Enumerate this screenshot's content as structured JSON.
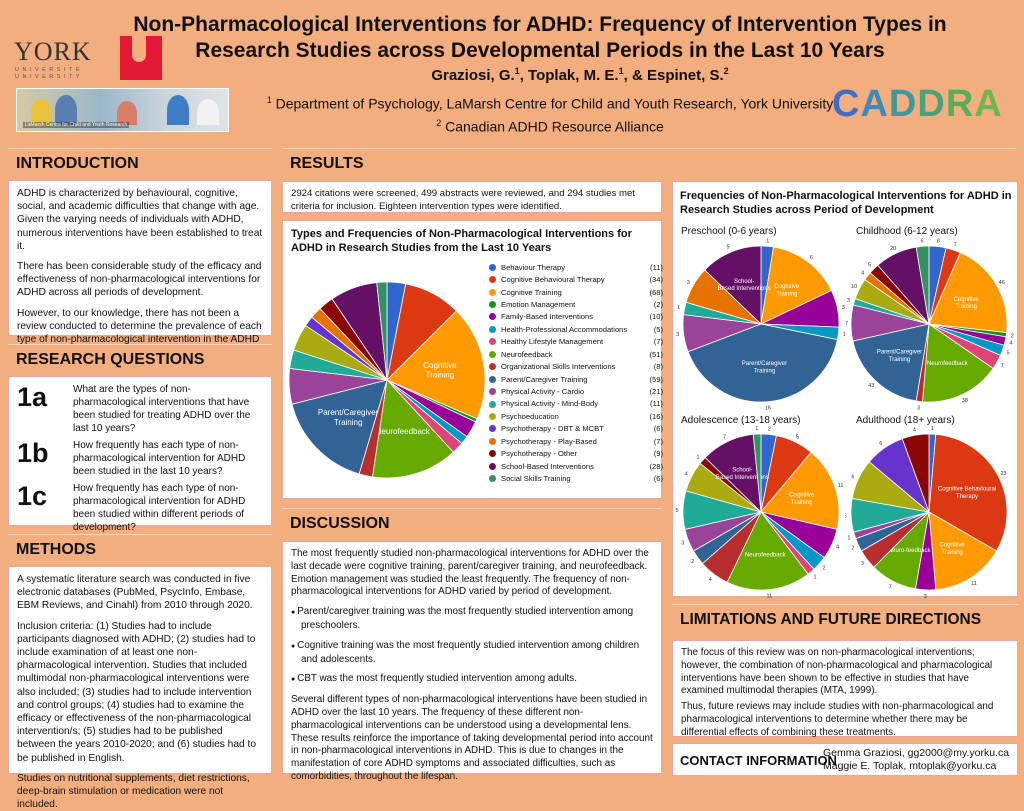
{
  "header": {
    "title_line1": "Non-Pharmacological Interventions for ADHD: Frequency of Intervention Types in",
    "title_line2": "Research Studies across Developmental Periods in the Last 10 Years",
    "authors": [
      {
        "name": "Graziosi, G.",
        "sup": "1"
      },
      {
        "name": "Toplak, M. E.",
        "sup": "1"
      },
      {
        "name": "Espinet, S.",
        "sup": "2"
      }
    ],
    "affiliations": [
      {
        "sup": "1",
        "text": "Department of Psychology, LaMarsh Centre for Child and Youth Research, York University"
      },
      {
        "sup": "2",
        "text": "Canadian ADHD Resource Alliance"
      }
    ],
    "york_logo": {
      "word": "YORK",
      "line1": "UNIVERSITÉ",
      "line2": "UNIVERSITY"
    },
    "photo_caption": "LaMarsh Centre for Child and Youth Research",
    "caddra_logo": [
      "C",
      "A",
      "D",
      "D",
      "R",
      "A"
    ]
  },
  "introduction": {
    "heading": "INTRODUCTION",
    "paragraphs": [
      "ADHD is characterized by behavioural, cognitive, social, and academic difficulties that change with age. Given the varying needs of individuals with ADHD, numerous interventions have been established to treat it.",
      "There has been considerable study of the efficacy and effectiveness of non-pharmacological interventions for ADHD across all periods of development.",
      "However, to our knowledge, there has not been a review conducted to determine the prevalence of each type of non-pharmacological intervention in the ADHD literature, either in general or across periods of development."
    ]
  },
  "research_questions": {
    "heading": "RESEARCH QUESTIONS",
    "items": [
      {
        "num": "1a",
        "text": "What are the types of non-pharmacological interventions that have been studied for treating ADHD over the last 10 years?"
      },
      {
        "num": "1b",
        "text": "How frequently has each type of non-pharmacological intervention for ADHD been studied in the last 10 years?"
      },
      {
        "num": "1c",
        "text": "How frequently has each type of non-pharmacological intervention for ADHD been studied within different periods of development?"
      }
    ]
  },
  "methods": {
    "heading": "METHODS",
    "paragraphs": [
      "A systematic literature search was conducted in five electronic databases (PubMed, PsycInfo, Embase, EBM Reviews, and Cinahl) from 2010 through 2020.",
      "Inclusion criteria: (1) Studies had to include participants diagnosed with ADHD; (2) studies had to include examination of at least one non-pharmacological intervention. Studies that included multimodal non-pharmacological interventions were also included; (3) studies had to include intervention and control groups; (4) studies had to examine the efficacy or effectiveness of the non-pharmacological intervention/s; (5) studies had to be published between the years 2010-2020; and (6) studies had to be published in English.",
      "Studies on nutritional supplements, diet restrictions, deep-brain stimulation or medication were not included."
    ]
  },
  "results": {
    "heading": "RESULTS",
    "summary": "2924 citations were screened, 499 abstracts were reviewed, and 294 studies met criteria for inclusion. Eighteen intervention types were identified."
  },
  "discussion": {
    "heading": "DISCUSSION",
    "intro": "The most frequently studied non-pharmacological interventions for ADHD over the last decade were cognitive training, parent/caregiver training, and neurofeedback. Emotion management was studied the least frequently. The frequency of non-pharmacological interventions for ADHD varied by period of development.",
    "bullets": [
      "Parent/caregiver training was the most frequently studied intervention among preschoolers.",
      "Cognitive training was the most frequently studied intervention among children and adolescents.",
      "CBT was the most frequently studied intervention among adults."
    ],
    "closing": "Several different types of non-pharmacological interventions have been studied in ADHD over the last 10 years. The frequency of these different non-pharmacological interventions can be understood using a developmental lens. These results reinforce the importance of taking developmental period into account in non-pharmacological interventions in ADHD. This is due to changes in the manifestation of core ADHD symptoms and associated difficulties, such as comorbidities, throughout the lifespan."
  },
  "limitations": {
    "heading": "LIMITATIONS AND FUTURE DIRECTIONS",
    "paragraphs": [
      "The focus of this review was on non-pharmacological interventions; however, the combination of non-pharmacological and pharmacological interventions have been shown to be effective in studies that have examined multimodal therapies (MTA, 1999).",
      "Thus, future reviews may include studies with non-pharmacological and pharmacological interventions to determine whether there may be differential effects of combining these treatments."
    ]
  },
  "contact": {
    "heading": "CONTACT INFORMATION",
    "lines": [
      "Gemma Graziosi, gg2000@my.yorku.ca",
      "Maggie E. Toplak, mtoplak@yorku.ca"
    ]
  },
  "chart_data": [
    {
      "type": "pie",
      "title": "Types and Frequencies of Non-Pharmacological Interventions for ADHD in Research Studies from the Last 10 Years",
      "categories": [
        "Behaviour Therapy",
        "Cognitive Behavioural Therapy",
        "Cognitive Training",
        "Emotion Management",
        "Family-Based Interventions",
        "Health-Professional Accommodations",
        "Healthy Lifestyle Management",
        "Neurofeedback",
        "Organizational Skills Interventions",
        "Parent/Caregiver Training",
        "Physical Activity - Cardio",
        "Physical Activity - Mind-Body",
        "Psychoeducation",
        "Psychotherapy - DBT & MCBT",
        "Psychotherapy - Play-Based",
        "Psychotherapy - Other",
        "School-Based Interventions",
        "Social Skills Training"
      ],
      "values": [
        11,
        34,
        68,
        2,
        10,
        5,
        7,
        51,
        8,
        59,
        21,
        11,
        16,
        6,
        7,
        9,
        28,
        6
      ],
      "colors": [
        "#3366cc",
        "#dc3912",
        "#ff9900",
        "#109618",
        "#990099",
        "#0099c6",
        "#dd4477",
        "#66aa00",
        "#b82e2e",
        "#316395",
        "#994499",
        "#22aa99",
        "#aaaa11",
        "#6633cc",
        "#e67300",
        "#8b0707",
        "#651067",
        "#329262"
      ],
      "slice_labels": {
        "Cognitive Training": "Cognitive Training",
        "Neurofeedback": "Neurofeedback",
        "Parent/Caregiver Training": "Parent/Caregiver Training"
      },
      "legend_position": "right"
    },
    {
      "type": "pie",
      "title": "Frequencies of Non-Pharmacological Interventions for ADHD in Research Studies across Period of Development",
      "subtitle": "Preschool (0-6 years)",
      "categories": [
        "Behaviour Therapy",
        "Cognitive Training",
        "Family-Based Interventions",
        "Health-Professional Accommodations",
        "Parent/Caregiver Training",
        "Physical Activity - Cardio",
        "Physical Activity - Mind-Body",
        "Psychotherapy - Play-Based",
        "School-Based Interventions"
      ],
      "values": [
        1,
        6,
        3,
        1,
        16,
        3,
        1,
        3,
        5
      ],
      "slice_labels": {
        "Cognitive Training": "Cognitive Training",
        "Parent/Caregiver Training": "Parent/Caregiver Training",
        "School-Based Interventions": "School-Based Interventions"
      }
    },
    {
      "type": "pie",
      "subtitle": "Childhood (6-12 years)",
      "categories": [
        "Behaviour Therapy",
        "Cognitive Behavioural Therapy",
        "Cognitive Training",
        "Emotion Management",
        "Family-Based Interventions",
        "Health-Professional Accommodations",
        "Healthy Lifestyle Management",
        "Neurofeedback",
        "Organizational Skills Interventions",
        "Parent/Caregiver Training",
        "Physical Activity - Cardio",
        "Physical Activity - Mind-Body",
        "Psychoeducation",
        "Psychotherapy - Play-Based",
        "Psychotherapy - Other",
        "School-Based Interventions",
        "Social Skills Training"
      ],
      "values": [
        8,
        7,
        46,
        2,
        4,
        5,
        7,
        38,
        3,
        43,
        17,
        3,
        10,
        4,
        5,
        20,
        6
      ],
      "slice_labels": {
        "Cognitive Training": "Cognitive Training",
        "Neurofeedback": "Neurofeedback",
        "Parent/Caregiver Training": "Parent/Caregiver Training"
      }
    },
    {
      "type": "pie",
      "subtitle": "Adolescence (13-18 years)",
      "categories": [
        "Behaviour Therapy",
        "Cognitive Behavioural Therapy",
        "Cognitive Training",
        "Family-Based Interventions",
        "Health-Professional Accommodations",
        "Healthy Lifestyle Management",
        "Neurofeedback",
        "Organizational Skills Interventions",
        "Parent/Caregiver Training",
        "Physical Activity - Cardio",
        "Physical Activity - Mind-Body",
        "Psychoeducation",
        "Psychotherapy - Other",
        "School-Based Interventions",
        "Social Skills Training"
      ],
      "values": [
        2,
        5,
        11,
        4,
        2,
        1,
        11,
        4,
        2,
        3,
        5,
        4,
        1,
        7,
        1
      ],
      "slice_labels": {
        "Cognitive Training": "Cognitive Training",
        "Neurofeedback": "Neurofeedback",
        "School-Based Interventions": "School-Based Interventions"
      }
    },
    {
      "type": "pie",
      "subtitle": "Adulthood (18+ years)",
      "categories": [
        "Behaviour Therapy",
        "Cognitive Behavioural Therapy",
        "Cognitive Training",
        "Family-Based Interventions",
        "Neurofeedback",
        "Organizational Skills Interventions",
        "Parent/Caregiver Training",
        "Physical Activity - Cardio",
        "Physical Activity - Mind-Body",
        "Psychoeducation",
        "Psychotherapy - DBT & MCBT",
        "Psychotherapy - Other"
      ],
      "values": [
        1,
        23,
        11,
        3,
        7,
        3,
        2,
        1,
        5,
        6,
        6,
        4
      ],
      "slice_labels": {
        "Cognitive Behavioural Therapy": "Cognitive Behavioural Therapy",
        "Cognitive Training": "Cognitive Training",
        "Neurofeedback": "Neuro-feedback"
      }
    }
  ]
}
